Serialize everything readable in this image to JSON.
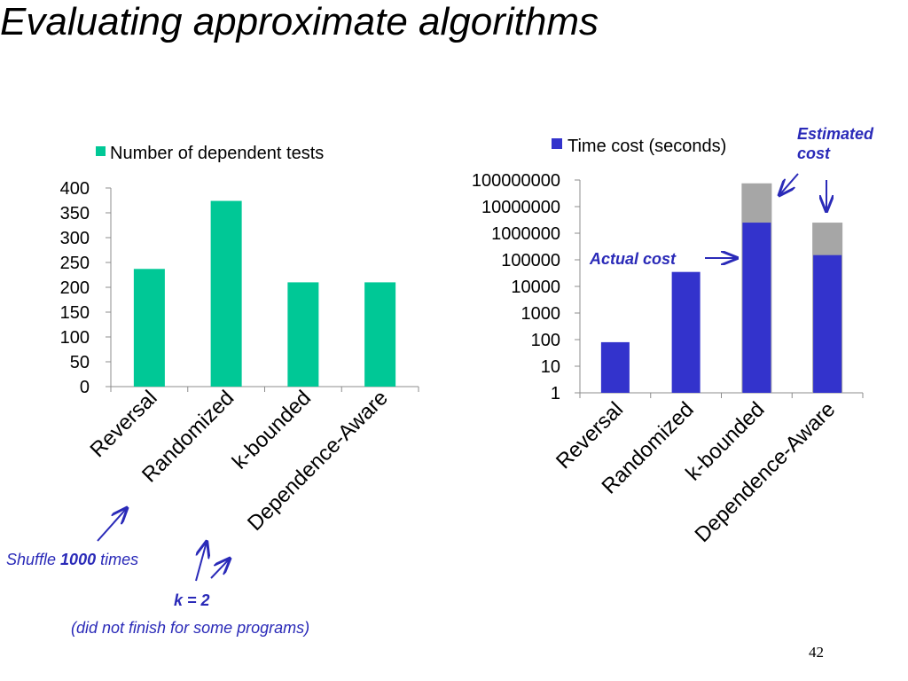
{
  "slide": {
    "title": "Evaluating approximate algorithms",
    "page_number": "42"
  },
  "annotations": {
    "estimated_cost": "Estimated\ncost",
    "actual_cost": "Actual cost",
    "shuffle_prefix": "Shuffle ",
    "shuffle_count": "1000",
    "shuffle_suffix": " times",
    "k_value": "k = 2",
    "did_not_finish": "(did not finish for some programs)"
  },
  "colors": {
    "teal": "#00c896",
    "blue": "#3333cc",
    "gray": "#a6a6a6",
    "annotation": "#2a2ab8"
  },
  "chart_data": [
    {
      "type": "bar",
      "title": "",
      "categories": [
        "Reversal",
        "Randomized",
        "k-bounded",
        "Dependence-Aware"
      ],
      "series": [
        {
          "name": "Number of  dependent tests",
          "values": [
            237,
            374,
            210,
            210
          ]
        }
      ],
      "ylim": [
        0,
        400
      ],
      "yticks": [
        0,
        50,
        100,
        150,
        200,
        250,
        300,
        350,
        400
      ],
      "legend": "top",
      "grid": false
    },
    {
      "type": "bar",
      "title": "",
      "log_scale": true,
      "categories": [
        "Reversal",
        "Randomized",
        "k-bounded",
        "Dependence-Aware"
      ],
      "series": [
        {
          "name": "Time cost (seconds)",
          "values": [
            80,
            35000,
            2500000,
            150000
          ]
        },
        {
          "name": "Estimated cost",
          "values": [
            null,
            null,
            75000000,
            2500000
          ]
        }
      ],
      "ylim": [
        1,
        100000000
      ],
      "yticks": [
        "1",
        "10",
        "100",
        "1000",
        "10000",
        "100000",
        "1000000",
        "10000000",
        "100000000"
      ],
      "legend": "top",
      "grid": false
    }
  ]
}
